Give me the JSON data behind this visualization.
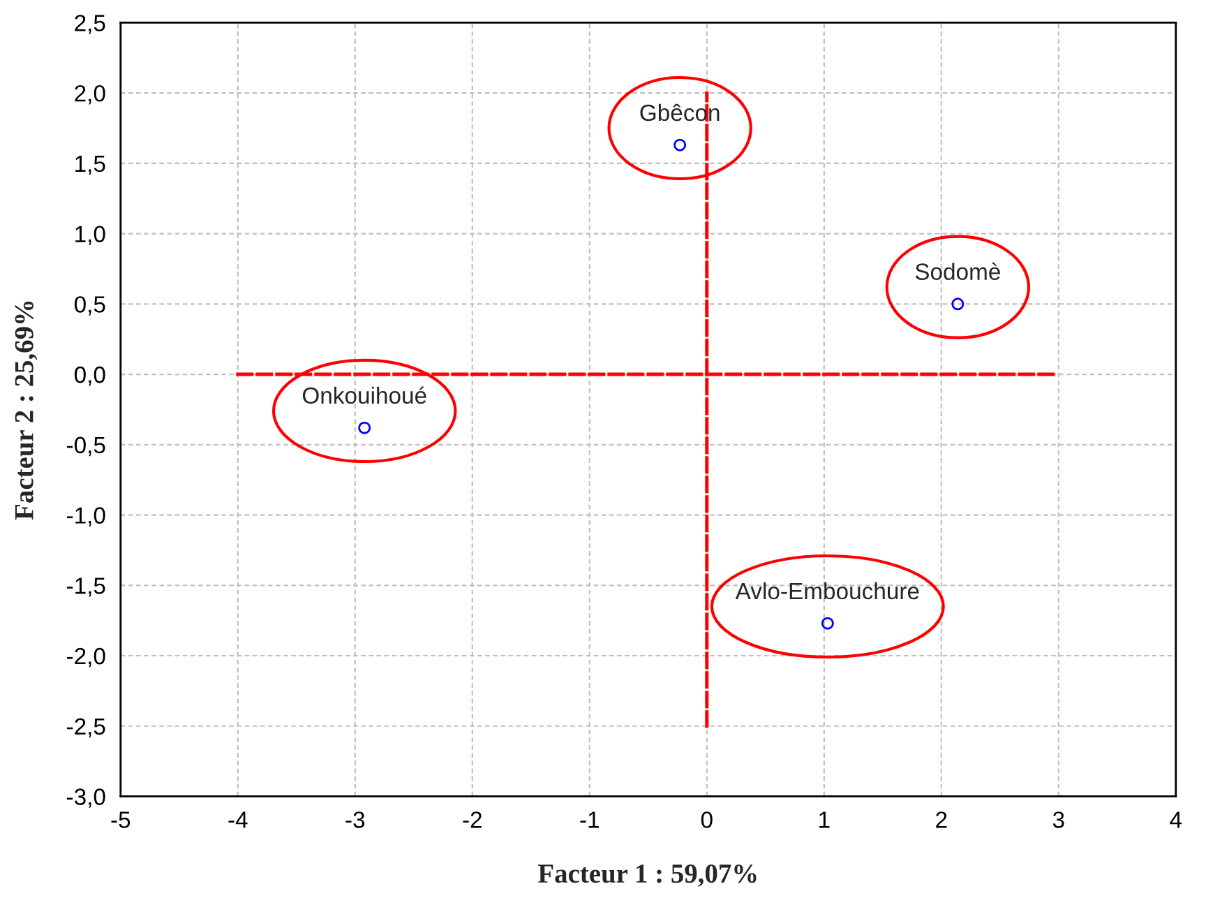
{
  "chart_data": {
    "type": "scatter",
    "xlabel": "Facteur 1 : 59,07%",
    "ylabel": "Facteur 2 : 25,69%",
    "xlim": [
      -5,
      4
    ],
    "ylim": [
      -3.0,
      2.5
    ],
    "xticks": [
      -5,
      -4,
      -3,
      -2,
      -1,
      0,
      1,
      2,
      3,
      4
    ],
    "yticks": [
      {
        "value": -3.0,
        "label": "-3,0"
      },
      {
        "value": -2.5,
        "label": "-2,5"
      },
      {
        "value": -2.0,
        "label": "-2,0"
      },
      {
        "value": -1.5,
        "label": "-1,5"
      },
      {
        "value": -1.0,
        "label": "-1,0"
      },
      {
        "value": -0.5,
        "label": "-0,5"
      },
      {
        "value": 0.0,
        "label": "0,0"
      },
      {
        "value": 0.5,
        "label": "0,5"
      },
      {
        "value": 1.0,
        "label": "1,0"
      },
      {
        "value": 1.5,
        "label": "1,5"
      },
      {
        "value": 2.0,
        "label": "2,0"
      },
      {
        "value": 2.5,
        "label": "2,5"
      }
    ],
    "grid": true,
    "series": [
      {
        "color": "#0000ff",
        "marker": "circle",
        "x": [
          -0.23,
          2.14,
          -2.92,
          1.03
        ],
        "values": [
          1.63,
          0.5,
          -0.38,
          -1.77
        ]
      },
      {
        "type": "line",
        "color": "#ff0000",
        "line_style": "dashed",
        "x": [
          -4,
          3
        ],
        "values": [
          0,
          0
        ]
      },
      {
        "type": "line",
        "color": "#ff0000",
        "line_style": "dashed",
        "x": [
          0,
          0
        ],
        "values": [
          -2.5,
          2.0
        ]
      }
    ],
    "annotations": [
      {
        "text": "Gbêcon",
        "x": -0.23,
        "y": 1.63
      },
      {
        "text": "Sodomè",
        "x": 2.14,
        "y": 0.5
      },
      {
        "text": "Onkouihoué",
        "x": -2.92,
        "y": -0.38
      },
      {
        "text": "Avlo-Embouchure",
        "x": 1.03,
        "y": -1.77
      }
    ]
  }
}
